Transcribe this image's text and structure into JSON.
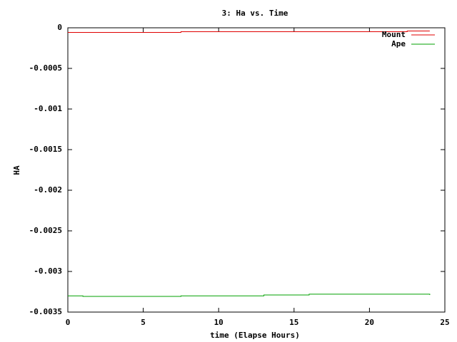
{
  "chart_data": {
    "type": "line",
    "title": "3: Ha vs. Time",
    "x_label": "time (Elapse Hours)",
    "y_label": "HA",
    "x": [
      0,
      1,
      7.5,
      13,
      16,
      22.5,
      24
    ],
    "series": [
      {
        "name": "Mount",
        "color": "#e00000",
        "values": [
          -5.7e-05,
          -5.7e-05,
          -4.8e-05,
          -4.8e-05,
          -4.8e-05,
          -4e-05,
          -4e-05
        ]
      },
      {
        "name": "Ape",
        "color": "#00a000",
        "values": [
          -0.0033,
          -0.003307,
          -0.0033,
          -0.00329,
          -0.00328,
          -0.00328,
          -0.00329
        ]
      }
    ],
    "xlim": [
      0,
      25
    ],
    "xticks": [
      0,
      5,
      10,
      15,
      20,
      25
    ],
    "ylim": [
      -0.0035,
      0
    ],
    "yticks": [
      0,
      -0.0005,
      -0.001,
      -0.0015,
      -0.002,
      -0.0025,
      -0.003,
      -0.0035
    ],
    "grid": false,
    "legend": "top-right",
    "step": true
  }
}
